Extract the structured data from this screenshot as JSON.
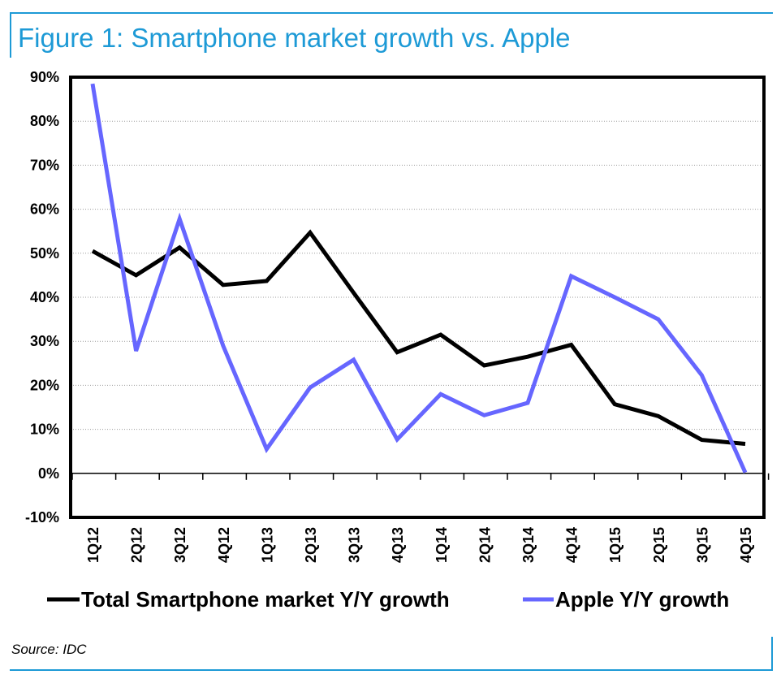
{
  "header": {
    "title": "Figure 1: Smartphone market growth vs. Apple"
  },
  "footer": {
    "source": "Source: IDC"
  },
  "colors": {
    "accent": "#1d9ad6",
    "series_total": "#000000",
    "series_apple": "#6666ff"
  },
  "chart_data": {
    "type": "line",
    "title": "Figure 1: Smartphone market growth vs. Apple",
    "xlabel": "",
    "ylabel": "",
    "categories": [
      "1Q12",
      "2Q12",
      "3Q12",
      "4Q12",
      "1Q13",
      "2Q13",
      "3Q13",
      "4Q13",
      "1Q14",
      "2Q14",
      "3Q14",
      "4Q14",
      "1Q15",
      "2Q15",
      "3Q15",
      "4Q15"
    ],
    "y_ticks": [
      "90%",
      "80%",
      "70%",
      "60%",
      "50%",
      "40%",
      "30%",
      "20%",
      "10%",
      "0%",
      "-10%"
    ],
    "ylim": [
      -10,
      90
    ],
    "grid": true,
    "legend_position": "bottom",
    "series": [
      {
        "name": "Total Smartphone market Y/Y growth",
        "values": [
          50.5,
          45,
          51.3,
          42.8,
          43.7,
          54.7,
          41,
          27.5,
          31.5,
          24.5,
          26.5,
          29.2,
          15.7,
          13,
          7.6,
          6.7
        ]
      },
      {
        "name": "Apple Y/Y growth",
        "values": [
          88.5,
          27.8,
          57.8,
          29,
          5.5,
          19.5,
          25.8,
          7.7,
          18,
          13.2,
          16,
          44.8,
          40,
          35,
          22.3,
          0.2
        ]
      }
    ]
  }
}
